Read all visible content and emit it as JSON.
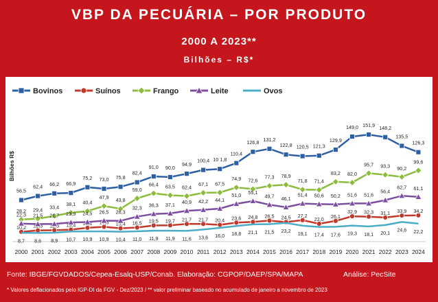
{
  "header": {
    "title": "VBP DA PECUÁRIA – POR PRODUTO",
    "subtitle": "2000 A 2023**",
    "unit": "Bilhões – R$*"
  },
  "footer": {
    "source": "Fonte: IBGE/FGVDADOS/Cepea-Esalq-USP/Conab. Elaboração: CGPOP/DAEP/SPA/MAPA",
    "analysis": "Análise: PecSite",
    "note": "* Valores deflacionados pelo IGP-DI da FGV - Dez/2023   /   ** valor preliminar baseado no acumulado de janeiro a novembro de 2023"
  },
  "chart_data": {
    "type": "line",
    "ylabel": "Bilhões R$",
    "xlabel": "",
    "ylim": [
      0,
      160
    ],
    "grid": false,
    "legend_position": "top-left",
    "x": [
      "2000",
      "2001",
      "2002",
      "2003",
      "2004",
      "2005",
      "2006",
      "2007",
      "2008",
      "2009",
      "2010",
      "2011",
      "2012",
      "2013",
      "2014",
      "2015",
      "2016",
      "2017",
      "2018",
      "2019",
      "2020",
      "2021",
      "2022",
      "2023",
      "2024"
    ],
    "series": [
      {
        "name": "Bovinos",
        "color": "#2e5fa3",
        "marker": "square",
        "values": [
          56.5,
          62.4,
          66.2,
          66.9,
          75.2,
          73.0,
          75.8,
          82.4,
          91.0,
          90.0,
          94.9,
          100.4,
          101.8,
          110.4,
          126.8,
          131.2,
          122.8,
          120.5,
          121.3,
          129.9,
          149.0,
          151.9,
          148.2,
          135.5,
          126.3
        ],
        "labels": [
          "56,5",
          "62,4",
          "66,2",
          "66,9",
          "75,2",
          "73,0",
          "75,8",
          "82,4",
          "91,0",
          "90,0",
          "94,9",
          "100,4",
          "10 1,8",
          "110,4",
          "126,8",
          "131,2",
          "122,8",
          "120,5",
          "121,3",
          "129,9",
          "149,0",
          "151,9",
          "148,2",
          "135,5",
          "126,3"
        ]
      },
      {
        "name": "Suínos",
        "color": "#c0392b",
        "marker": "circle",
        "values": [
          10.2,
          12.3,
          12.6,
          13.4,
          16.1,
          17.5,
          15.4,
          16.5,
          19.5,
          19.7,
          21.7,
          21.7,
          20.4,
          23.6,
          24.8,
          26.5,
          24.5,
          27.2,
          22.0,
          26.1,
          32.9,
          32.3,
          31.1,
          33.9,
          34.2
        ],
        "labels": [
          "10,2",
          "12,3",
          "12,6",
          "13,4",
          "16,1",
          "17,5",
          "15,4",
          "16,5",
          "19,5",
          "19,7",
          "21,7",
          "21,7",
          "20,4",
          "23,6",
          "24,8",
          "26,5",
          "24,5",
          "27,2",
          "22,0",
          "26,1",
          "32,9",
          "32,3",
          "31,1",
          "33,9",
          "34,2"
        ]
      },
      {
        "name": "Frango",
        "color": "#8dbb3c",
        "marker": "diamond",
        "values": [
          28.2,
          29.4,
          33.4,
          38.1,
          40.4,
          47.9,
          43.8,
          59.0,
          66.4,
          63.5,
          62.4,
          67.1,
          67.5,
          74.9,
          72.6,
          77.3,
          78.9,
          71.8,
          71.4,
          83.2,
          82.0,
          95.7,
          93.3,
          90.2,
          99.6
        ],
        "labels": [
          "28,2",
          "29,4",
          "33,4",
          "38,1",
          "40,4",
          "47,9",
          "43,8",
          "59,0",
          "66,4",
          "63,5",
          "62,4",
          "67,1",
          "67,5",
          "74,9",
          "72,6",
          "77,3",
          "78,9",
          "71,8",
          "71,4",
          "83,2",
          "82,0",
          "95,7",
          "93,3",
          "90,2",
          "99,6"
        ]
      },
      {
        "name": "Leite",
        "color": "#7d4e9f",
        "marker": "triangle",
        "values": [
          22.3,
          21.5,
          21.7,
          23.9,
          24.5,
          26.5,
          26.3,
          32.3,
          36.3,
          37.1,
          40.9,
          42.2,
          44.1,
          51.0,
          55.1,
          49.7,
          46.1,
          51.4,
          50.6,
          50.2,
          51.6,
          51.6,
          56.4,
          62.7,
          61.1
        ],
        "labels": [
          "22,3",
          "21,5",
          "21,7",
          "23,9",
          "24,5",
          "26,5",
          "26,3",
          "32,3",
          "36,3",
          "37,1",
          "40,9",
          "42,2",
          "44,1",
          "51,0",
          "55,1",
          "49,7",
          "46,1",
          "51,4",
          "50,6",
          "50,2",
          "51,6",
          "51,6",
          "56,4",
          "62,7",
          "61,1"
        ]
      },
      {
        "name": "Ovos",
        "color": "#4bacc6",
        "marker": "none",
        "values": [
          8.7,
          8.6,
          8.9,
          10.7,
          10.9,
          10.9,
          10.4,
          11.0,
          11.9,
          11.9,
          11.6,
          13.6,
          16.0,
          18.8,
          21.1,
          21.5,
          23.2,
          19.1,
          17.4,
          17.6,
          19.3,
          18.1,
          20.1,
          24.6,
          22.2
        ],
        "labels": [
          "8,7",
          "8,6",
          "8,9",
          "10,7",
          "10,9",
          "10,9",
          "10,4",
          "11,0",
          "11,9",
          "11,9",
          "11,6",
          "13,6",
          "16,0",
          "18,8",
          "21,1",
          "21,5",
          "23,2",
          "19,1",
          "17,4",
          "17,6",
          "19,3",
          "18,1",
          "20,1",
          "24,6",
          "22,2"
        ]
      }
    ]
  }
}
